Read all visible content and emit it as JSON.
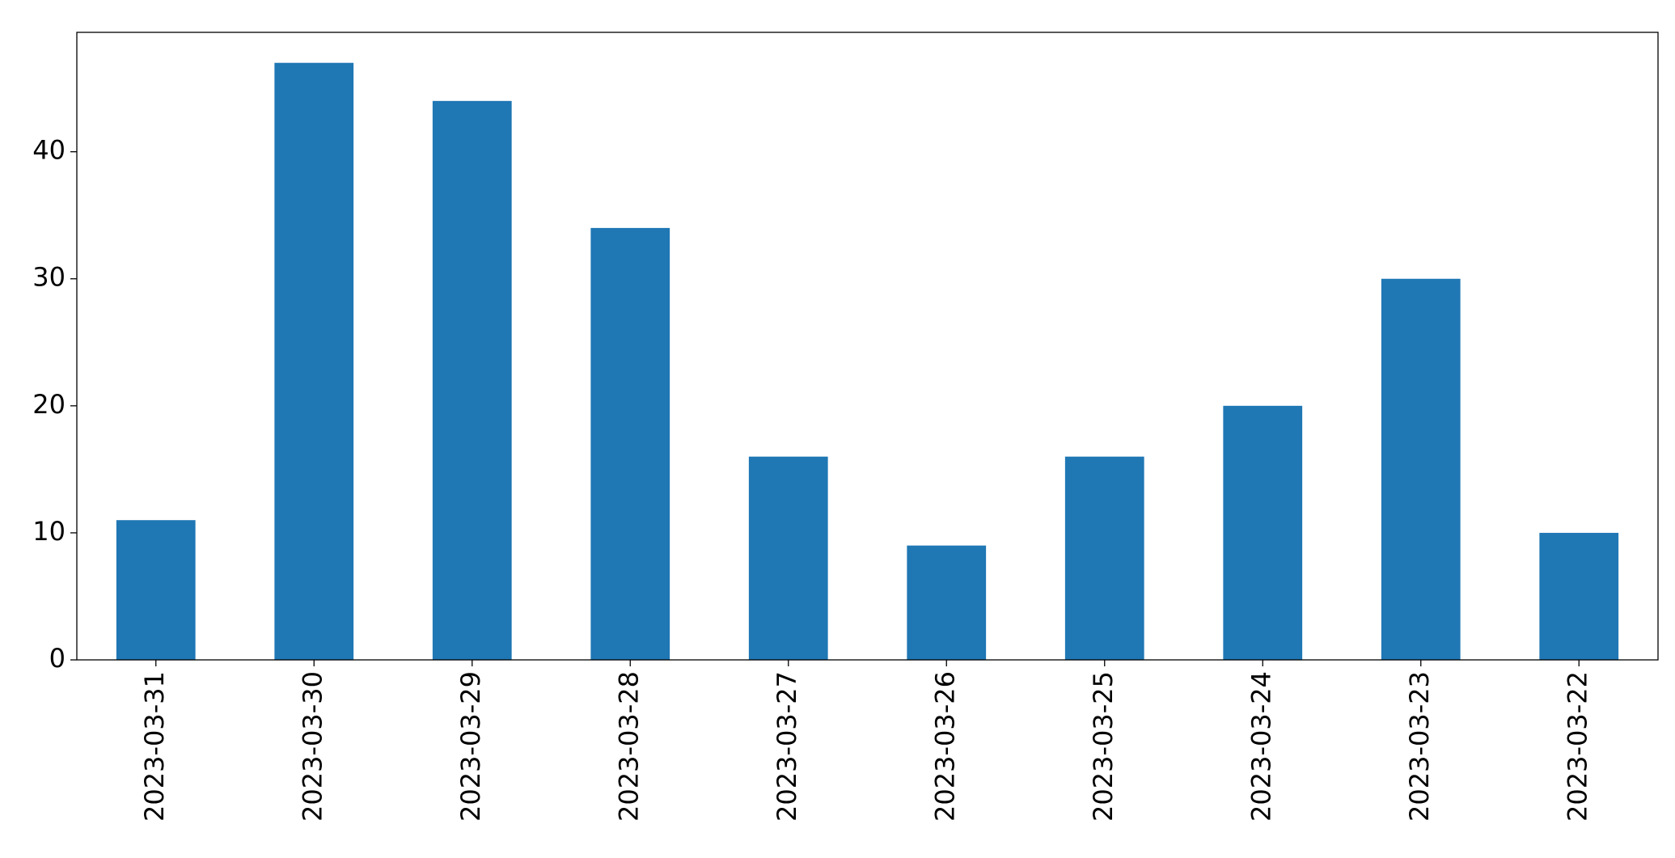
{
  "chart_data": {
    "type": "bar",
    "categories": [
      "2023-03-31",
      "2023-03-30",
      "2023-03-29",
      "2023-03-28",
      "2023-03-27",
      "2023-03-26",
      "2023-03-25",
      "2023-03-24",
      "2023-03-23",
      "2023-03-22"
    ],
    "values": [
      11,
      47,
      44,
      34,
      16,
      9,
      16,
      20,
      30,
      10
    ],
    "color": "#1f77b4",
    "ylim": [
      0,
      49.4
    ],
    "yticks": [
      0,
      10,
      20,
      30,
      40
    ],
    "grid": false
  }
}
